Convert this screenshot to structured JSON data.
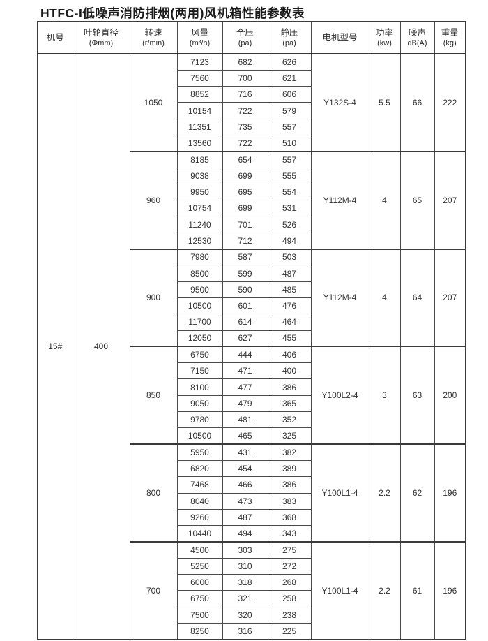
{
  "title": "HTFC-I低噪声消防排烟(两用)风机箱性能参数表",
  "colors": {
    "background": "#ffffff",
    "border": "#4a4a4a",
    "text": "#333333"
  },
  "table": {
    "headers": [
      {
        "line1": "机号",
        "line2": ""
      },
      {
        "line1": "叶轮直径",
        "line2": "(Φmm)"
      },
      {
        "line1": "转速",
        "line2": "(r/min)"
      },
      {
        "line1": "风量",
        "line2": "(m³/h)"
      },
      {
        "line1": "全压",
        "line2": "(pa)"
      },
      {
        "line1": "静压",
        "line2": "(pa)"
      },
      {
        "line1": "电机型号",
        "line2": ""
      },
      {
        "line1": "功率",
        "line2": "(kw)"
      },
      {
        "line1": "噪声",
        "line2": "dB(A)"
      },
      {
        "line1": "重量",
        "line2": "(kg)"
      }
    ],
    "machine_no": "15#",
    "impeller_diameter": "400",
    "groups": [
      {
        "speed": "1050",
        "motor": "Y132S-4",
        "power": "5.5",
        "noise": "66",
        "weight": "222",
        "rows": [
          {
            "flow": "7123",
            "total_pressure": "682",
            "static_pressure": "626"
          },
          {
            "flow": "7560",
            "total_pressure": "700",
            "static_pressure": "621"
          },
          {
            "flow": "8852",
            "total_pressure": "716",
            "static_pressure": "606"
          },
          {
            "flow": "10154",
            "total_pressure": "722",
            "static_pressure": "579"
          },
          {
            "flow": "11351",
            "total_pressure": "735",
            "static_pressure": "557"
          },
          {
            "flow": "13560",
            "total_pressure": "722",
            "static_pressure": "510"
          }
        ]
      },
      {
        "speed": "960",
        "motor": "Y112M-4",
        "power": "4",
        "noise": "65",
        "weight": "207",
        "rows": [
          {
            "flow": "8185",
            "total_pressure": "654",
            "static_pressure": "557"
          },
          {
            "flow": "9038",
            "total_pressure": "699",
            "static_pressure": "555"
          },
          {
            "flow": "9950",
            "total_pressure": "695",
            "static_pressure": "554"
          },
          {
            "flow": "10754",
            "total_pressure": "699",
            "static_pressure": "531"
          },
          {
            "flow": "11240",
            "total_pressure": "701",
            "static_pressure": "526"
          },
          {
            "flow": "12530",
            "total_pressure": "712",
            "static_pressure": "494"
          }
        ]
      },
      {
        "speed": "900",
        "motor": "Y112M-4",
        "power": "4",
        "noise": "64",
        "weight": "207",
        "rows": [
          {
            "flow": "7980",
            "total_pressure": "587",
            "static_pressure": "503"
          },
          {
            "flow": "8500",
            "total_pressure": "599",
            "static_pressure": "487"
          },
          {
            "flow": "9500",
            "total_pressure": "590",
            "static_pressure": "485"
          },
          {
            "flow": "10500",
            "total_pressure": "601",
            "static_pressure": "476"
          },
          {
            "flow": "11700",
            "total_pressure": "614",
            "static_pressure": "464"
          },
          {
            "flow": "12050",
            "total_pressure": "627",
            "static_pressure": "455"
          }
        ]
      },
      {
        "speed": "850",
        "motor": "Y100L2-4",
        "power": "3",
        "noise": "63",
        "weight": "200",
        "rows": [
          {
            "flow": "6750",
            "total_pressure": "444",
            "static_pressure": "406"
          },
          {
            "flow": "7150",
            "total_pressure": "471",
            "static_pressure": "400"
          },
          {
            "flow": "8100",
            "total_pressure": "477",
            "static_pressure": "386"
          },
          {
            "flow": "9050",
            "total_pressure": "479",
            "static_pressure": "365"
          },
          {
            "flow": "9780",
            "total_pressure": "481",
            "static_pressure": "352"
          },
          {
            "flow": "10500",
            "total_pressure": "465",
            "static_pressure": "325"
          }
        ]
      },
      {
        "speed": "800",
        "motor": "Y100L1-4",
        "power": "2.2",
        "noise": "62",
        "weight": "196",
        "rows": [
          {
            "flow": "5950",
            "total_pressure": "431",
            "static_pressure": "382"
          },
          {
            "flow": "6820",
            "total_pressure": "454",
            "static_pressure": "389"
          },
          {
            "flow": "7468",
            "total_pressure": "466",
            "static_pressure": "386"
          },
          {
            "flow": "8040",
            "total_pressure": "473",
            "static_pressure": "383"
          },
          {
            "flow": "9260",
            "total_pressure": "487",
            "static_pressure": "368"
          },
          {
            "flow": "10440",
            "total_pressure": "494",
            "static_pressure": "343"
          }
        ]
      },
      {
        "speed": "700",
        "motor": "Y100L1-4",
        "power": "2.2",
        "noise": "61",
        "weight": "196",
        "rows": [
          {
            "flow": "4500",
            "total_pressure": "303",
            "static_pressure": "275"
          },
          {
            "flow": "5250",
            "total_pressure": "310",
            "static_pressure": "272"
          },
          {
            "flow": "6000",
            "total_pressure": "318",
            "static_pressure": "268"
          },
          {
            "flow": "6750",
            "total_pressure": "321",
            "static_pressure": "258"
          },
          {
            "flow": "7500",
            "total_pressure": "320",
            "static_pressure": "238"
          },
          {
            "flow": "8250",
            "total_pressure": "316",
            "static_pressure": "225"
          }
        ]
      }
    ]
  }
}
